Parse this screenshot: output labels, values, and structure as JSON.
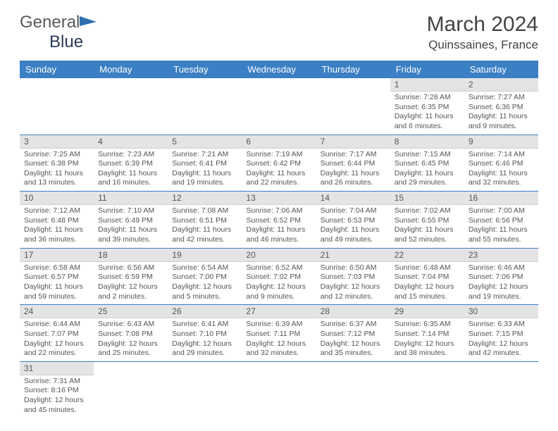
{
  "logo": {
    "word1": "General",
    "word2": "Blue"
  },
  "title": "March 2024",
  "location": "Quinssaines, France",
  "colors": {
    "header_bg": "#3b7fc4",
    "header_text": "#ffffff",
    "daynum_bg": "#e4e4e4",
    "rule": "#3b7fc4",
    "logo_flag": "#2f6fb0"
  },
  "weekdays": [
    "Sunday",
    "Monday",
    "Tuesday",
    "Wednesday",
    "Thursday",
    "Friday",
    "Saturday"
  ],
  "weeks": [
    [
      null,
      null,
      null,
      null,
      null,
      {
        "n": "1",
        "sr": "Sunrise: 7:28 AM",
        "ss": "Sunset: 6:35 PM",
        "dl1": "Daylight: 11 hours",
        "dl2": "and 6 minutes."
      },
      {
        "n": "2",
        "sr": "Sunrise: 7:27 AM",
        "ss": "Sunset: 6:36 PM",
        "dl1": "Daylight: 11 hours",
        "dl2": "and 9 minutes."
      }
    ],
    [
      {
        "n": "3",
        "sr": "Sunrise: 7:25 AM",
        "ss": "Sunset: 6:38 PM",
        "dl1": "Daylight: 11 hours",
        "dl2": "and 13 minutes."
      },
      {
        "n": "4",
        "sr": "Sunrise: 7:23 AM",
        "ss": "Sunset: 6:39 PM",
        "dl1": "Daylight: 11 hours",
        "dl2": "and 16 minutes."
      },
      {
        "n": "5",
        "sr": "Sunrise: 7:21 AM",
        "ss": "Sunset: 6:41 PM",
        "dl1": "Daylight: 11 hours",
        "dl2": "and 19 minutes."
      },
      {
        "n": "6",
        "sr": "Sunrise: 7:19 AM",
        "ss": "Sunset: 6:42 PM",
        "dl1": "Daylight: 11 hours",
        "dl2": "and 22 minutes."
      },
      {
        "n": "7",
        "sr": "Sunrise: 7:17 AM",
        "ss": "Sunset: 6:44 PM",
        "dl1": "Daylight: 11 hours",
        "dl2": "and 26 minutes."
      },
      {
        "n": "8",
        "sr": "Sunrise: 7:15 AM",
        "ss": "Sunset: 6:45 PM",
        "dl1": "Daylight: 11 hours",
        "dl2": "and 29 minutes."
      },
      {
        "n": "9",
        "sr": "Sunrise: 7:14 AM",
        "ss": "Sunset: 6:46 PM",
        "dl1": "Daylight: 11 hours",
        "dl2": "and 32 minutes."
      }
    ],
    [
      {
        "n": "10",
        "sr": "Sunrise: 7:12 AM",
        "ss": "Sunset: 6:48 PM",
        "dl1": "Daylight: 11 hours",
        "dl2": "and 36 minutes."
      },
      {
        "n": "11",
        "sr": "Sunrise: 7:10 AM",
        "ss": "Sunset: 6:49 PM",
        "dl1": "Daylight: 11 hours",
        "dl2": "and 39 minutes."
      },
      {
        "n": "12",
        "sr": "Sunrise: 7:08 AM",
        "ss": "Sunset: 6:51 PM",
        "dl1": "Daylight: 11 hours",
        "dl2": "and 42 minutes."
      },
      {
        "n": "13",
        "sr": "Sunrise: 7:06 AM",
        "ss": "Sunset: 6:52 PM",
        "dl1": "Daylight: 11 hours",
        "dl2": "and 46 minutes."
      },
      {
        "n": "14",
        "sr": "Sunrise: 7:04 AM",
        "ss": "Sunset: 6:53 PM",
        "dl1": "Daylight: 11 hours",
        "dl2": "and 49 minutes."
      },
      {
        "n": "15",
        "sr": "Sunrise: 7:02 AM",
        "ss": "Sunset: 6:55 PM",
        "dl1": "Daylight: 11 hours",
        "dl2": "and 52 minutes."
      },
      {
        "n": "16",
        "sr": "Sunrise: 7:00 AM",
        "ss": "Sunset: 6:56 PM",
        "dl1": "Daylight: 11 hours",
        "dl2": "and 55 minutes."
      }
    ],
    [
      {
        "n": "17",
        "sr": "Sunrise: 6:58 AM",
        "ss": "Sunset: 6:57 PM",
        "dl1": "Daylight: 11 hours",
        "dl2": "and 59 minutes."
      },
      {
        "n": "18",
        "sr": "Sunrise: 6:56 AM",
        "ss": "Sunset: 6:59 PM",
        "dl1": "Daylight: 12 hours",
        "dl2": "and 2 minutes."
      },
      {
        "n": "19",
        "sr": "Sunrise: 6:54 AM",
        "ss": "Sunset: 7:00 PM",
        "dl1": "Daylight: 12 hours",
        "dl2": "and 5 minutes."
      },
      {
        "n": "20",
        "sr": "Sunrise: 6:52 AM",
        "ss": "Sunset: 7:02 PM",
        "dl1": "Daylight: 12 hours",
        "dl2": "and 9 minutes."
      },
      {
        "n": "21",
        "sr": "Sunrise: 6:50 AM",
        "ss": "Sunset: 7:03 PM",
        "dl1": "Daylight: 12 hours",
        "dl2": "and 12 minutes."
      },
      {
        "n": "22",
        "sr": "Sunrise: 6:48 AM",
        "ss": "Sunset: 7:04 PM",
        "dl1": "Daylight: 12 hours",
        "dl2": "and 15 minutes."
      },
      {
        "n": "23",
        "sr": "Sunrise: 6:46 AM",
        "ss": "Sunset: 7:06 PM",
        "dl1": "Daylight: 12 hours",
        "dl2": "and 19 minutes."
      }
    ],
    [
      {
        "n": "24",
        "sr": "Sunrise: 6:44 AM",
        "ss": "Sunset: 7:07 PM",
        "dl1": "Daylight: 12 hours",
        "dl2": "and 22 minutes."
      },
      {
        "n": "25",
        "sr": "Sunrise: 6:43 AM",
        "ss": "Sunset: 7:08 PM",
        "dl1": "Daylight: 12 hours",
        "dl2": "and 25 minutes."
      },
      {
        "n": "26",
        "sr": "Sunrise: 6:41 AM",
        "ss": "Sunset: 7:10 PM",
        "dl1": "Daylight: 12 hours",
        "dl2": "and 29 minutes."
      },
      {
        "n": "27",
        "sr": "Sunrise: 6:39 AM",
        "ss": "Sunset: 7:11 PM",
        "dl1": "Daylight: 12 hours",
        "dl2": "and 32 minutes."
      },
      {
        "n": "28",
        "sr": "Sunrise: 6:37 AM",
        "ss": "Sunset: 7:12 PM",
        "dl1": "Daylight: 12 hours",
        "dl2": "and 35 minutes."
      },
      {
        "n": "29",
        "sr": "Sunrise: 6:35 AM",
        "ss": "Sunset: 7:14 PM",
        "dl1": "Daylight: 12 hours",
        "dl2": "and 38 minutes."
      },
      {
        "n": "30",
        "sr": "Sunrise: 6:33 AM",
        "ss": "Sunset: 7:15 PM",
        "dl1": "Daylight: 12 hours",
        "dl2": "and 42 minutes."
      }
    ],
    [
      {
        "n": "31",
        "sr": "Sunrise: 7:31 AM",
        "ss": "Sunset: 8:16 PM",
        "dl1": "Daylight: 12 hours",
        "dl2": "and 45 minutes."
      },
      null,
      null,
      null,
      null,
      null,
      null
    ]
  ]
}
